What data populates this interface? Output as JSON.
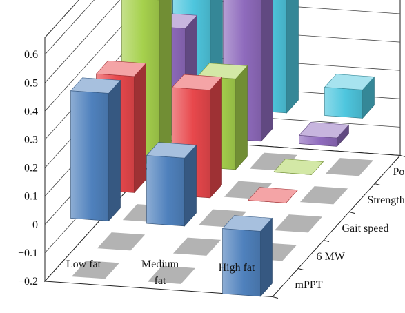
{
  "chart_data": {
    "type": "bar3d",
    "title": "",
    "xlabel": "",
    "ylabel": "",
    "ylim": [
      -0.2,
      0.6
    ],
    "yticks": [
      -0.2,
      -0.1,
      0,
      0.1,
      0.2,
      0.3,
      0.4,
      0.5,
      0.6
    ],
    "ytick_labels": [
      "−0.2",
      "−0.1",
      "0",
      "0.1",
      "0.2",
      "0.3",
      "0.4",
      "0.5",
      "0.6"
    ],
    "grid": true,
    "categories": [
      "Low fat",
      "Medium fat",
      "High fat"
    ],
    "category_labels": [
      [
        "Low fat"
      ],
      [
        "Medium",
        "fat"
      ],
      [
        "High fat"
      ]
    ],
    "series": [
      {
        "name": "mPPT",
        "color": "#4f81bd",
        "values": [
          0.45,
          0.24,
          -0.23
        ]
      },
      {
        "name": "6 MW",
        "color": "#e8484c",
        "values": [
          0.41,
          0.38,
          0.0
        ]
      },
      {
        "name": "Gait speed",
        "color": "#a6d14d",
        "values": [
          0.58,
          0.32,
          0.0
        ]
      },
      {
        "name": "Strength",
        "color": "#8f6bbd",
        "values": [
          0.38,
          0.57,
          0.03
        ]
      },
      {
        "name": "Power",
        "color": "#4ec6de",
        "values": [
          0.5,
          0.62,
          0.1
        ]
      }
    ]
  }
}
